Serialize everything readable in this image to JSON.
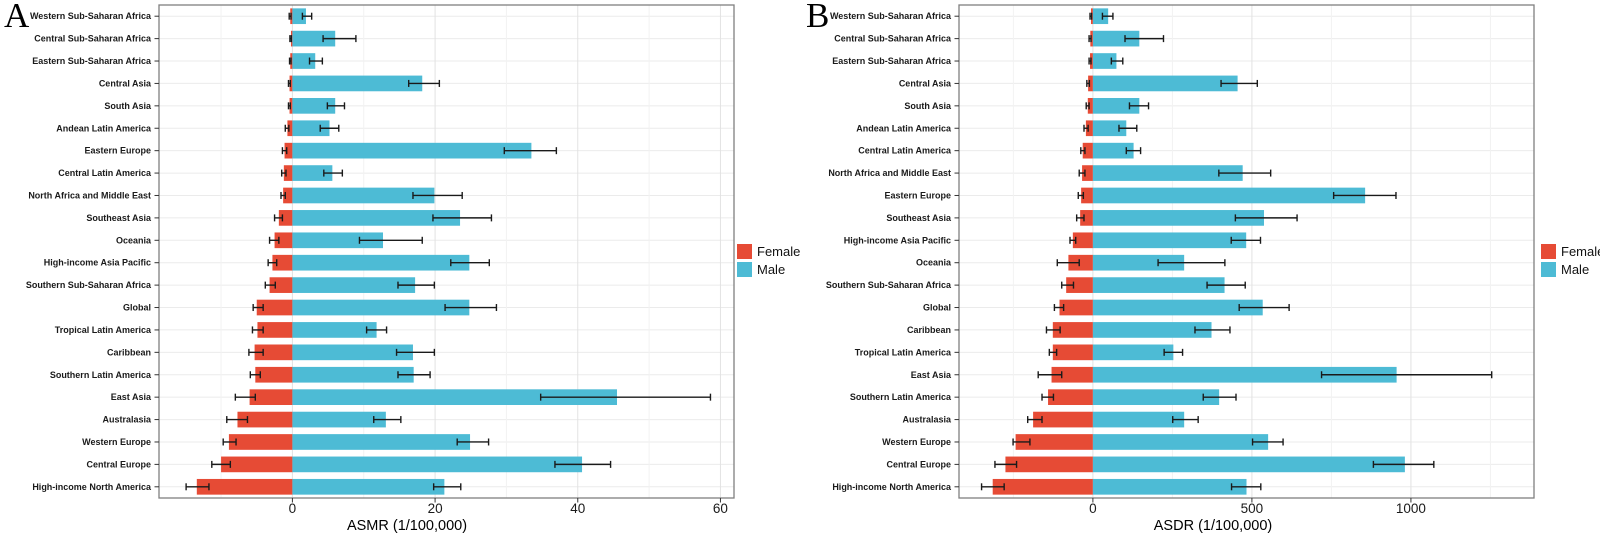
{
  "chart_data": [
    {
      "type": "bar",
      "panel_label": "A",
      "orientation": "horizontal",
      "xlabel": "ASMR (1/100,000)",
      "xlim": [
        -18.7,
        61.9
      ],
      "xticks": [
        0,
        20,
        40,
        60
      ],
      "xminor": [
        -10,
        10,
        30,
        50
      ],
      "grid": true,
      "error_bars": true,
      "legend_position": "right",
      "legend": [
        {
          "name": "Female",
          "color": "#E64B35"
        },
        {
          "name": "Male",
          "color": "#4DBBD5"
        }
      ],
      "categories": [
        "Western Sub-Saharan Africa",
        "Central Sub-Saharan Africa",
        "Eastern Sub-Saharan Africa",
        "Central Asia",
        "South Asia",
        "Andean Latin America",
        "Eastern Europe",
        "Central Latin America",
        "North Africa and Middle East",
        "Southeast Asia",
        "Oceania",
        "High-income Asia Pacific",
        "Southern Sub-Saharan Africa",
        "Global",
        "Tropical Latin America",
        "Caribbean",
        "Southern Latin America",
        "East Asia",
        "Australasia",
        "Western Europe",
        "Central Europe",
        "High-income North America"
      ],
      "series": [
        {
          "name": "Female",
          "color": "#E64B35",
          "values": [
            -0.3,
            -0.2,
            -0.3,
            -0.4,
            -0.4,
            -0.7,
            -1.1,
            -1.2,
            -1.3,
            -1.9,
            -2.5,
            -2.8,
            -3.2,
            -5.0,
            -4.9,
            -5.3,
            -5.2,
            -6.0,
            -7.7,
            -8.9,
            -10.0,
            -13.4
          ],
          "ci_low": [
            -0.45,
            -0.35,
            -0.4,
            -0.55,
            -0.55,
            -1.0,
            -1.4,
            -1.5,
            -1.6,
            -2.5,
            -3.2,
            -3.4,
            -3.8,
            -5.5,
            -5.6,
            -6.1,
            -5.9,
            -8.0,
            -9.2,
            -9.7,
            -11.3,
            -14.9
          ],
          "ci_high": [
            -0.2,
            -0.15,
            -0.2,
            -0.3,
            -0.3,
            -0.5,
            -0.8,
            -0.9,
            -1.0,
            -1.4,
            -1.9,
            -2.2,
            -2.4,
            -4.1,
            -4.1,
            -4.1,
            -4.5,
            -5.2,
            -6.3,
            -7.9,
            -8.7,
            -11.7
          ]
        },
        {
          "name": "Male",
          "color": "#4DBBD5",
          "values": [
            1.9,
            6.0,
            3.2,
            18.2,
            6.0,
            5.2,
            33.5,
            5.6,
            19.9,
            23.5,
            12.7,
            24.8,
            17.2,
            24.8,
            11.8,
            16.9,
            17.0,
            45.5,
            13.1,
            24.9,
            40.6,
            21.3
          ],
          "ci_low": [
            1.4,
            4.3,
            2.4,
            16.3,
            4.9,
            3.9,
            29.7,
            4.4,
            16.9,
            19.7,
            9.4,
            22.2,
            14.8,
            21.4,
            10.4,
            14.6,
            14.8,
            34.8,
            11.4,
            23.1,
            36.8,
            19.8
          ],
          "ci_high": [
            2.7,
            8.9,
            4.2,
            20.6,
            7.3,
            6.5,
            37.0,
            7.0,
            23.8,
            27.9,
            18.2,
            27.6,
            19.9,
            28.6,
            13.2,
            19.9,
            19.3,
            58.6,
            15.2,
            27.5,
            44.6,
            23.6
          ]
        }
      ]
    },
    {
      "type": "bar",
      "panel_label": "B",
      "orientation": "horizontal",
      "xlabel": "ASDR (1/100,000)",
      "xlim": [
        -421,
        1387
      ],
      "xticks": [
        0,
        500,
        1000
      ],
      "xminor": [
        -250,
        250,
        750,
        1250
      ],
      "grid": true,
      "error_bars": true,
      "legend_position": "right",
      "legend": [
        {
          "name": "Female",
          "color": "#E64B35"
        },
        {
          "name": "Male",
          "color": "#4DBBD5"
        }
      ],
      "categories": [
        "Western Sub-Saharan Africa",
        "Central Sub-Saharan Africa",
        "Eastern Sub-Saharan Africa",
        "Central Asia",
        "South Asia",
        "Andean Latin America",
        "Central Latin America",
        "North Africa and Middle East",
        "Eastern Europe",
        "Southeast Asia",
        "High-income Asia Pacific",
        "Oceania",
        "Southern Sub-Saharan Africa",
        "Global",
        "Caribbean",
        "Tropical Latin America",
        "East Asia",
        "Southern Latin America",
        "Australasia",
        "Western Europe",
        "Central Europe",
        "High-income North America"
      ],
      "series": [
        {
          "name": "Female",
          "color": "#E64B35",
          "values": [
            -6,
            -8,
            -9,
            -15,
            -16,
            -22,
            -32,
            -34,
            -37,
            -40,
            -63,
            -77,
            -84,
            -105,
            -126,
            -126,
            -130,
            -141,
            -188,
            -243,
            -275,
            -315
          ],
          "ci_low": [
            -9,
            -12,
            -12,
            -19,
            -21,
            -28,
            -38,
            -43,
            -46,
            -51,
            -72,
            -112,
            -98,
            -121,
            -146,
            -137,
            -172,
            -160,
            -205,
            -251,
            -308,
            -350
          ],
          "ci_high": [
            -4,
            -6,
            -6,
            -11,
            -12,
            -15,
            -25,
            -25,
            -30,
            -28,
            -54,
            -43,
            -61,
            -92,
            -103,
            -114,
            -98,
            -124,
            -160,
            -198,
            -240,
            -279
          ]
        },
        {
          "name": "Male",
          "color": "#4DBBD5",
          "values": [
            48,
            146,
            74,
            455,
            146,
            105,
            128,
            471,
            856,
            538,
            482,
            287,
            414,
            534,
            373,
            253,
            955,
            397,
            287,
            551,
            981,
            483
          ],
          "ci_low": [
            30,
            101,
            58,
            403,
            115,
            82,
            105,
            396,
            757,
            448,
            435,
            205,
            359,
            460,
            321,
            224,
            719,
            347,
            251,
            502,
            882,
            436
          ],
          "ci_high": [
            63,
            222,
            94,
            517,
            175,
            138,
            150,
            559,
            953,
            642,
            527,
            415,
            479,
            617,
            431,
            282,
            1254,
            450,
            331,
            598,
            1072,
            528
          ]
        }
      ]
    }
  ]
}
